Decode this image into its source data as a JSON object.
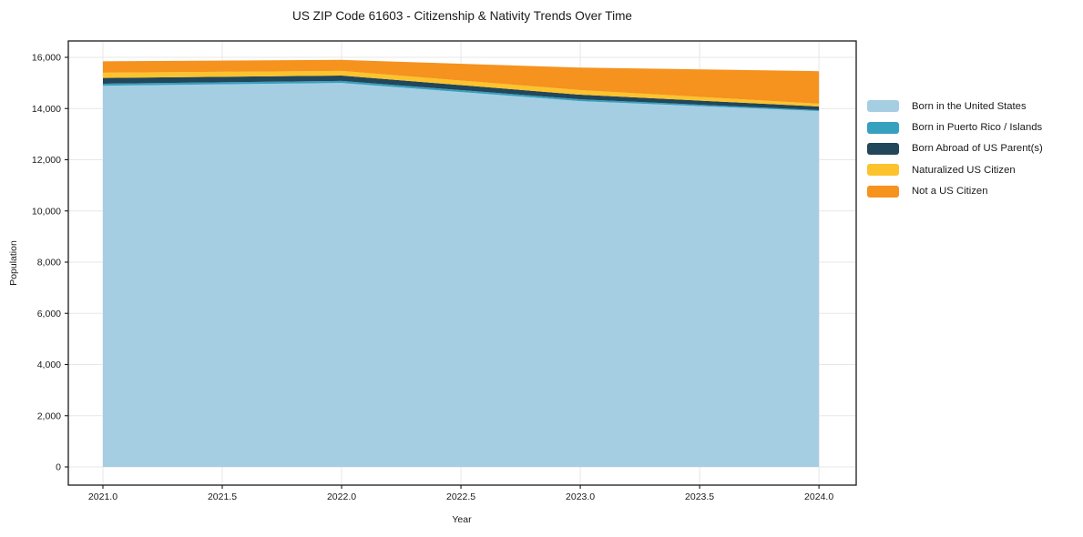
{
  "title": "US ZIP Code 61603 - Citizenship & Nativity Trends Over Time",
  "chart_data": {
    "type": "area",
    "stacked": true,
    "title": "US ZIP Code 61603 - Citizenship & Nativity Trends Over Time",
    "xlabel": "Year",
    "ylabel": "Population",
    "x": [
      2021,
      2022,
      2023,
      2024
    ],
    "series": [
      {
        "name": "Born in the United States",
        "color": "#a6cee3",
        "values": [
          14890,
          15000,
          14290,
          13900
        ]
      },
      {
        "name": "Born in Puerto Rico / Islands",
        "color": "#36a0bf",
        "values": [
          80,
          80,
          70,
          40
        ]
      },
      {
        "name": "Born Abroad of US Parent(s)",
        "color": "#22465a",
        "values": [
          225,
          210,
          180,
          140
        ]
      },
      {
        "name": "Naturalized US Citizen",
        "color": "#fcc32d",
        "values": [
          205,
          180,
          180,
          110
        ]
      },
      {
        "name": "Not a US Citizen",
        "color": "#f6921e",
        "values": [
          445,
          430,
          880,
          1270
        ]
      }
    ],
    "totals_by_year": [
      15845,
      15900,
      15600,
      15460
    ],
    "x_ticks": [
      2021.0,
      2021.5,
      2022.0,
      2022.5,
      2023.0,
      2023.5,
      2024.0
    ],
    "x_tick_labels": [
      "2021.0",
      "2021.5",
      "2022.0",
      "2022.5",
      "2023.0",
      "2023.5",
      "2024.0"
    ],
    "y_ticks": [
      0,
      2000,
      4000,
      6000,
      8000,
      10000,
      12000,
      14000,
      16000
    ],
    "y_tick_labels": [
      "0",
      "2,000",
      "4,000",
      "6,000",
      "8,000",
      "10,000",
      "12,000",
      "14,000",
      "16,000"
    ],
    "xlim": [
      2020.855,
      2024.156
    ],
    "ylim": [
      -711,
      16640
    ],
    "grid": true,
    "grid_color": "#e7e7e7",
    "axis_color": "#1a1a1a",
    "legend_position": "right-outside"
  }
}
